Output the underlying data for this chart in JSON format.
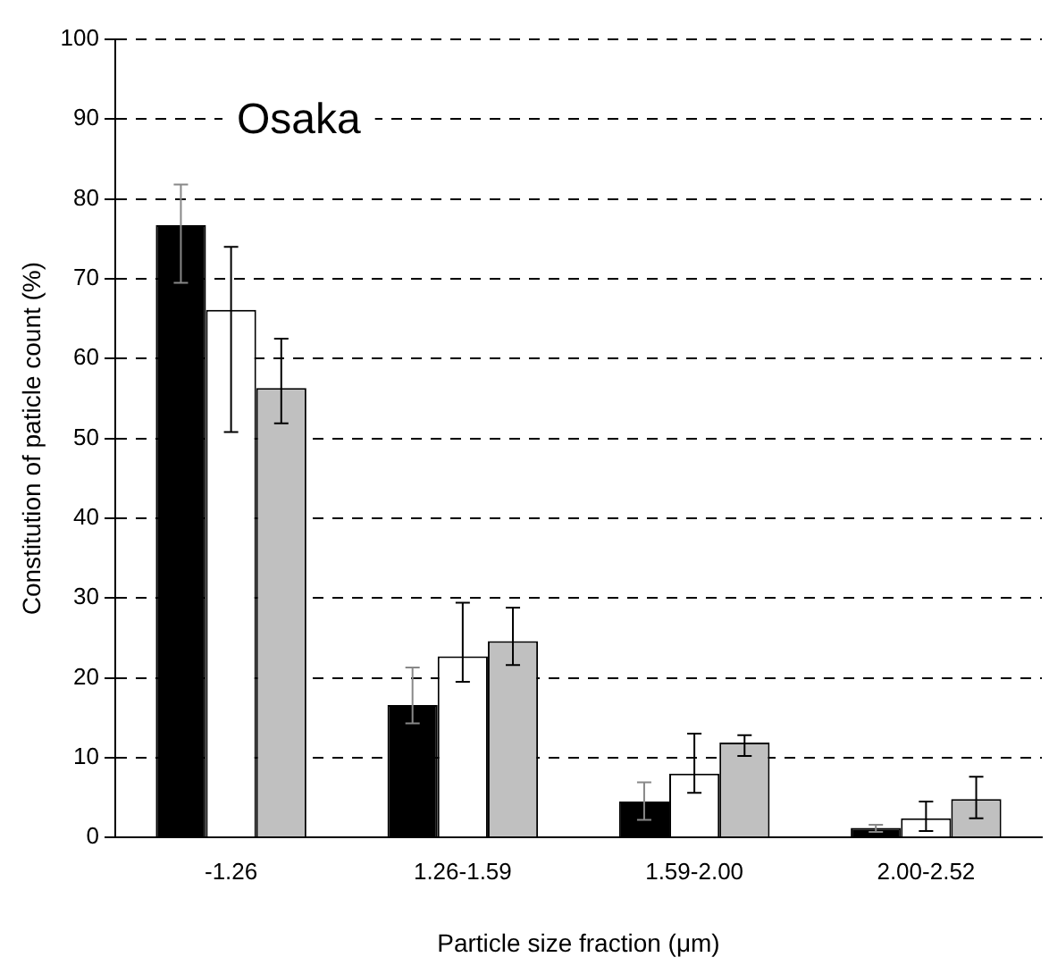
{
  "chart_data": {
    "type": "bar",
    "title": "Osaka",
    "xlabel": "Particle size fraction (μm)",
    "ylabel": "Constitution of paticle count (%)",
    "categories": [
      "-1.26",
      "1.26-1.59",
      "1.59-2.00",
      "2.00-2.52"
    ],
    "series": [
      {
        "color": "#000000",
        "values": [
          76.7,
          16.6,
          4.5,
          1.2
        ],
        "errors": [
          [
            69.5,
            81.8
          ],
          [
            14.3,
            21.3
          ],
          [
            2.2,
            6.9
          ],
          [
            0.7,
            1.6
          ]
        ]
      },
      {
        "color": "#ffffff",
        "values": [
          66.1,
          22.7,
          8.0,
          2.4
        ],
        "errors": [
          [
            50.8,
            74.0
          ],
          [
            19.5,
            29.4
          ],
          [
            5.6,
            13.0
          ],
          [
            0.8,
            4.5
          ]
        ]
      },
      {
        "color": "#c0c0c0",
        "values": [
          56.3,
          24.6,
          11.9,
          4.8
        ],
        "errors": [
          [
            51.9,
            62.5
          ],
          [
            21.6,
            28.8
          ],
          [
            10.2,
            12.8
          ],
          [
            2.4,
            7.6
          ]
        ]
      }
    ],
    "ylim": [
      0,
      100
    ],
    "yticks": [
      0,
      10,
      20,
      30,
      40,
      50,
      60,
      70,
      80,
      90,
      100
    ],
    "grid": "y"
  }
}
